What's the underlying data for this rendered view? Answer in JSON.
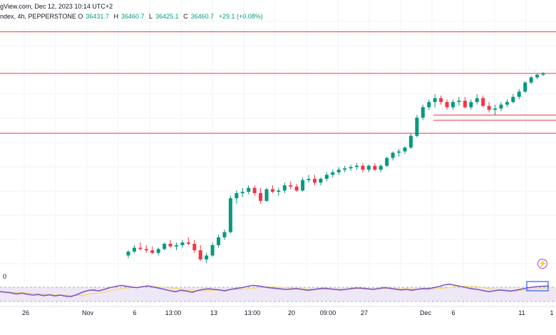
{
  "header": {
    "title_fragment": "gView.com, Dec 12, 2023 10:14 UTC+2",
    "symbol_fragment": "ndex, 4h, PEPPERSTONE",
    "ohlc": [
      {
        "key": "O",
        "value": "36431.7"
      },
      {
        "key": "H",
        "value": "36460.7"
      },
      {
        "key": "L",
        "value": "36425.1"
      },
      {
        "key": "C",
        "value": "36460.7"
      }
    ],
    "change": "+29.1 (+0.08%)"
  },
  "rsi_label": "0",
  "x_axis": {
    "labels": [
      "26",
      "Nov",
      "6",
      "13:00",
      "13",
      "13:00",
      "20",
      "09:00",
      "27",
      "Dec",
      "6",
      "11",
      "1"
    ]
  },
  "colors": {
    "up": "#089981",
    "down": "#f23645",
    "level_line": "#f23645",
    "rsi_line": "#7e57c2",
    "rsi_band": "#ede7f6",
    "rsi_ma": "#f7d560",
    "rsi_highlight_box": "#2962ff"
  },
  "icons": {
    "flash": "lightning-icon"
  },
  "chart_data": {
    "type": "candlestick",
    "overlay_levels_note": "horizontal support/resistance lines",
    "candles": [
      {
        "o": 0.1,
        "h": 0.12,
        "l": 0.09,
        "c": 0.115
      },
      {
        "o": 0.115,
        "h": 0.14,
        "l": 0.11,
        "c": 0.13
      },
      {
        "o": 0.13,
        "h": 0.15,
        "l": 0.12,
        "c": 0.125
      },
      {
        "o": 0.125,
        "h": 0.14,
        "l": 0.11,
        "c": 0.12
      },
      {
        "o": 0.12,
        "h": 0.135,
        "l": 0.105,
        "c": 0.11
      },
      {
        "o": 0.11,
        "h": 0.13,
        "l": 0.1,
        "c": 0.125
      },
      {
        "o": 0.125,
        "h": 0.15,
        "l": 0.12,
        "c": 0.145
      },
      {
        "o": 0.145,
        "h": 0.16,
        "l": 0.13,
        "c": 0.135
      },
      {
        "o": 0.135,
        "h": 0.15,
        "l": 0.12,
        "c": 0.14
      },
      {
        "o": 0.14,
        "h": 0.16,
        "l": 0.13,
        "c": 0.15
      },
      {
        "o": 0.15,
        "h": 0.17,
        "l": 0.14,
        "c": 0.145
      },
      {
        "o": 0.145,
        "h": 0.16,
        "l": 0.11,
        "c": 0.12
      },
      {
        "o": 0.12,
        "h": 0.14,
        "l": 0.08,
        "c": 0.085
      },
      {
        "o": 0.085,
        "h": 0.11,
        "l": 0.07,
        "c": 0.1
      },
      {
        "o": 0.1,
        "h": 0.15,
        "l": 0.095,
        "c": 0.14
      },
      {
        "o": 0.14,
        "h": 0.18,
        "l": 0.13,
        "c": 0.17
      },
      {
        "o": 0.17,
        "h": 0.2,
        "l": 0.16,
        "c": 0.19
      },
      {
        "o": 0.19,
        "h": 0.33,
        "l": 0.185,
        "c": 0.32
      },
      {
        "o": 0.32,
        "h": 0.35,
        "l": 0.3,
        "c": 0.34
      },
      {
        "o": 0.34,
        "h": 0.36,
        "l": 0.325,
        "c": 0.345
      },
      {
        "o": 0.345,
        "h": 0.37,
        "l": 0.335,
        "c": 0.36
      },
      {
        "o": 0.36,
        "h": 0.37,
        "l": 0.33,
        "c": 0.34
      },
      {
        "o": 0.34,
        "h": 0.36,
        "l": 0.3,
        "c": 0.31
      },
      {
        "o": 0.31,
        "h": 0.36,
        "l": 0.305,
        "c": 0.355
      },
      {
        "o": 0.355,
        "h": 0.37,
        "l": 0.34,
        "c": 0.345
      },
      {
        "o": 0.345,
        "h": 0.36,
        "l": 0.33,
        "c": 0.35
      },
      {
        "o": 0.35,
        "h": 0.38,
        "l": 0.34,
        "c": 0.37
      },
      {
        "o": 0.37,
        "h": 0.385,
        "l": 0.355,
        "c": 0.365
      },
      {
        "o": 0.365,
        "h": 0.375,
        "l": 0.345,
        "c": 0.35
      },
      {
        "o": 0.35,
        "h": 0.4,
        "l": 0.345,
        "c": 0.39
      },
      {
        "o": 0.39,
        "h": 0.41,
        "l": 0.38,
        "c": 0.395
      },
      {
        "o": 0.395,
        "h": 0.41,
        "l": 0.37,
        "c": 0.38
      },
      {
        "o": 0.38,
        "h": 0.4,
        "l": 0.37,
        "c": 0.395
      },
      {
        "o": 0.395,
        "h": 0.42,
        "l": 0.385,
        "c": 0.41
      },
      {
        "o": 0.41,
        "h": 0.43,
        "l": 0.4,
        "c": 0.42
      },
      {
        "o": 0.42,
        "h": 0.44,
        "l": 0.41,
        "c": 0.43
      },
      {
        "o": 0.43,
        "h": 0.445,
        "l": 0.42,
        "c": 0.435
      },
      {
        "o": 0.435,
        "h": 0.45,
        "l": 0.425,
        "c": 0.44
      },
      {
        "o": 0.44,
        "h": 0.455,
        "l": 0.43,
        "c": 0.445
      },
      {
        "o": 0.445,
        "h": 0.455,
        "l": 0.42,
        "c": 0.43
      },
      {
        "o": 0.43,
        "h": 0.45,
        "l": 0.42,
        "c": 0.445
      },
      {
        "o": 0.445,
        "h": 0.455,
        "l": 0.425,
        "c": 0.43
      },
      {
        "o": 0.43,
        "h": 0.45,
        "l": 0.42,
        "c": 0.445
      },
      {
        "o": 0.445,
        "h": 0.48,
        "l": 0.44,
        "c": 0.475
      },
      {
        "o": 0.475,
        "h": 0.5,
        "l": 0.465,
        "c": 0.495
      },
      {
        "o": 0.495,
        "h": 0.51,
        "l": 0.48,
        "c": 0.5
      },
      {
        "o": 0.5,
        "h": 0.52,
        "l": 0.49,
        "c": 0.515
      },
      {
        "o": 0.515,
        "h": 0.57,
        "l": 0.51,
        "c": 0.56
      },
      {
        "o": 0.56,
        "h": 0.64,
        "l": 0.555,
        "c": 0.63
      },
      {
        "o": 0.63,
        "h": 0.68,
        "l": 0.62,
        "c": 0.67
      },
      {
        "o": 0.67,
        "h": 0.7,
        "l": 0.66,
        "c": 0.69
      },
      {
        "o": 0.69,
        "h": 0.72,
        "l": 0.67,
        "c": 0.705
      },
      {
        "o": 0.705,
        "h": 0.715,
        "l": 0.68,
        "c": 0.69
      },
      {
        "o": 0.69,
        "h": 0.7,
        "l": 0.66,
        "c": 0.67
      },
      {
        "o": 0.67,
        "h": 0.7,
        "l": 0.66,
        "c": 0.69
      },
      {
        "o": 0.69,
        "h": 0.71,
        "l": 0.675,
        "c": 0.695
      },
      {
        "o": 0.695,
        "h": 0.71,
        "l": 0.665,
        "c": 0.67
      },
      {
        "o": 0.67,
        "h": 0.7,
        "l": 0.66,
        "c": 0.69
      },
      {
        "o": 0.69,
        "h": 0.72,
        "l": 0.68,
        "c": 0.705
      },
      {
        "o": 0.705,
        "h": 0.715,
        "l": 0.67,
        "c": 0.675
      },
      {
        "o": 0.675,
        "h": 0.69,
        "l": 0.65,
        "c": 0.66
      },
      {
        "o": 0.66,
        "h": 0.68,
        "l": 0.64,
        "c": 0.665
      },
      {
        "o": 0.665,
        "h": 0.69,
        "l": 0.655,
        "c": 0.68
      },
      {
        "o": 0.68,
        "h": 0.7,
        "l": 0.67,
        "c": 0.69
      },
      {
        "o": 0.69,
        "h": 0.72,
        "l": 0.685,
        "c": 0.71
      },
      {
        "o": 0.71,
        "h": 0.74,
        "l": 0.7,
        "c": 0.73
      },
      {
        "o": 0.73,
        "h": 0.77,
        "l": 0.725,
        "c": 0.765
      },
      {
        "o": 0.765,
        "h": 0.79,
        "l": 0.76,
        "c": 0.785
      },
      {
        "o": 0.785,
        "h": 0.8,
        "l": 0.778,
        "c": 0.795
      },
      {
        "o": 0.795,
        "h": 0.805,
        "l": 0.79,
        "c": 0.8
      }
    ],
    "levels": [
      0.96,
      0.8,
      0.57,
      0.64,
      0.62
    ],
    "rsi": [
      0.52,
      0.5,
      0.48,
      0.44,
      0.47,
      0.43,
      0.4,
      0.42,
      0.38,
      0.41,
      0.37,
      0.4,
      0.36,
      0.35,
      0.42,
      0.5,
      0.56,
      0.58,
      0.55,
      0.6,
      0.66,
      0.7,
      0.74,
      0.71,
      0.68,
      0.66,
      0.7,
      0.72,
      0.68,
      0.64,
      0.6,
      0.55,
      0.52,
      0.57,
      0.54,
      0.5,
      0.56,
      0.6,
      0.62,
      0.6,
      0.58,
      0.55,
      0.6,
      0.63,
      0.66,
      0.7,
      0.74,
      0.72,
      0.69,
      0.66,
      0.64,
      0.62,
      0.6,
      0.61,
      0.63,
      0.6,
      0.57,
      0.59,
      0.62,
      0.64,
      0.62,
      0.6,
      0.58,
      0.6,
      0.63,
      0.65,
      0.64,
      0.62,
      0.6,
      0.63,
      0.66,
      0.64,
      0.61,
      0.58,
      0.6,
      0.57,
      0.6,
      0.63,
      0.62,
      0.66,
      0.7,
      0.76,
      0.78,
      0.74,
      0.7,
      0.66,
      0.62,
      0.6,
      0.56,
      0.52,
      0.55,
      0.58,
      0.56,
      0.54,
      0.57,
      0.61,
      0.65,
      0.68,
      0.7,
      0.71,
      0.72
    ]
  }
}
